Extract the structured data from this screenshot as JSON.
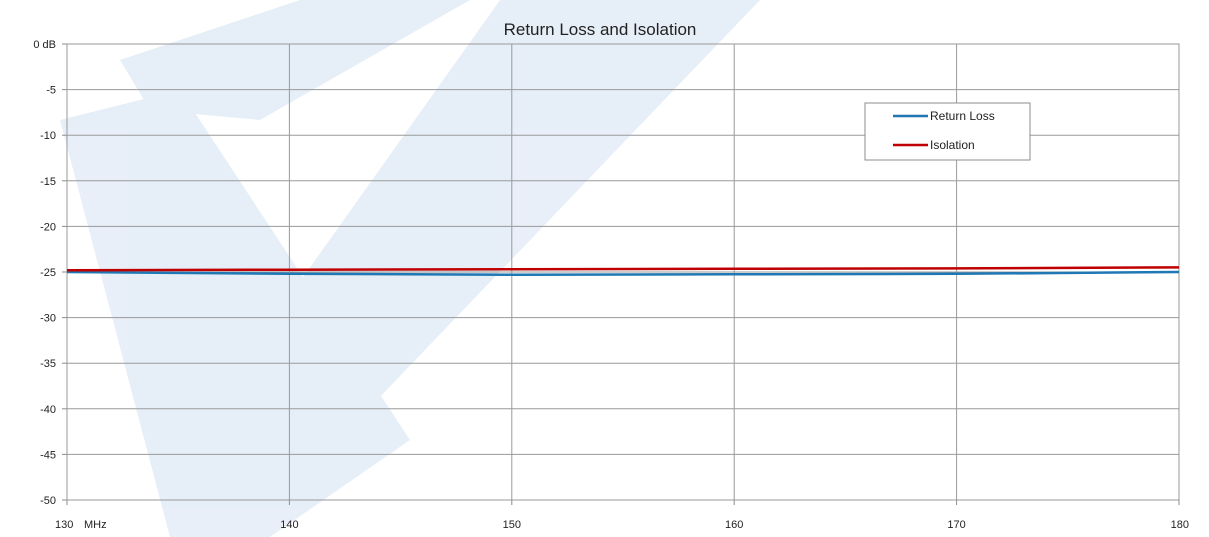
{
  "chart_data": {
    "type": "line",
    "title": "Return Loss and Isolation",
    "xlim": [
      130,
      180
    ],
    "ylim": [
      -50,
      0
    ],
    "x_ticks": [
      130,
      140,
      150,
      160,
      170,
      180
    ],
    "x_tick_labels": [
      "130",
      "140",
      "150",
      "160",
      "170",
      "180"
    ],
    "x_unit": "MHz",
    "y_ticks": [
      0,
      -5,
      -10,
      -15,
      -20,
      -25,
      -30,
      -35,
      -40,
      -45,
      -50
    ],
    "y_tick_labels": [
      "0 dB",
      "-5",
      "-10",
      "-15",
      "-20",
      "-25",
      "-30",
      "-35",
      "-40",
      "-45",
      "-50"
    ],
    "grid": true,
    "legend_position": "top-right",
    "series": [
      {
        "name": "Return Loss",
        "color": "#1f77b4",
        "x": [
          130,
          140,
          150,
          160,
          170,
          180
        ],
        "y": [
          -25.0,
          -25.2,
          -25.3,
          -25.25,
          -25.2,
          -25.0
        ]
      },
      {
        "name": "Isolation",
        "color": "#c00000",
        "x": [
          130,
          140,
          150,
          160,
          170,
          180
        ],
        "y": [
          -24.8,
          -24.75,
          -24.7,
          -24.65,
          -24.6,
          -24.5
        ]
      }
    ]
  }
}
